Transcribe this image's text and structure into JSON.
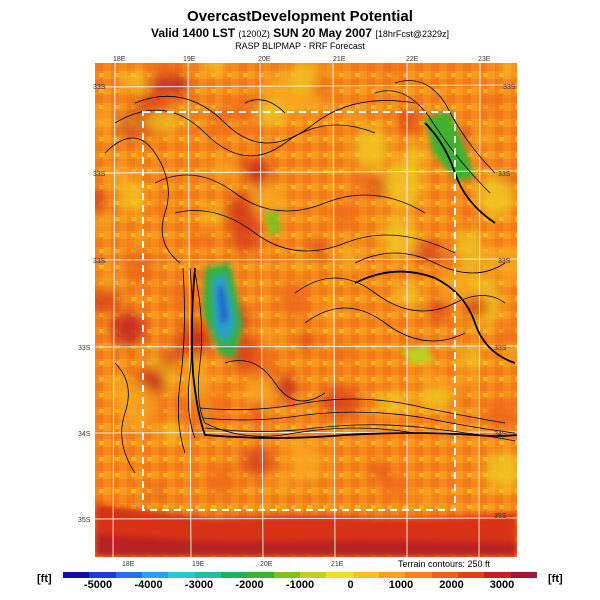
{
  "header": {
    "title": "OvercastDevelopment Potential",
    "valid_prefix": "Valid 1400 LST",
    "valid_utc": "(1200Z)",
    "valid_date": "SUN 20 May 2007",
    "forecast_info": "[18hrFcst@2329z]",
    "subtitle": "RASP BLIPMAP - RRF Forecast"
  },
  "map": {
    "lon_labels_top": [
      "18E",
      "19E",
      "20E",
      "21E",
      "22E",
      "23E"
    ],
    "lon_labels_bottom": [
      "18E",
      "19E",
      "20E",
      "21E"
    ],
    "lat_labels_left": [
      "33S",
      "33S",
      "33S",
      "33S",
      "34S",
      "35S"
    ],
    "lat_labels_right": [
      "33S",
      "33S",
      "33S",
      "33S",
      "34S",
      "35S"
    ],
    "terrain_note": "Terrain contours: 250 ft"
  },
  "legend": {
    "unit_left": "[ft]",
    "unit_right": "[ft]",
    "tick_labels": [
      "-5000",
      "-4000",
      "-3000",
      "-2000",
      "-1000",
      "0",
      "1000",
      "2000",
      "3000"
    ],
    "colors": [
      "#1010a0",
      "#1c3cd8",
      "#2a6cf0",
      "#2aa0f0",
      "#20c8d8",
      "#20c0a0",
      "#20b060",
      "#40b030",
      "#80c020",
      "#c0d020",
      "#f0e020",
      "#f8c020",
      "#f8a020",
      "#f88020",
      "#f06018",
      "#e04018",
      "#c82020",
      "#a01830"
    ]
  },
  "map_fill": {
    "base_color": "#f88a1c",
    "patch_colors": [
      "#f06a18",
      "#f8a820",
      "#f0c820",
      "#d84018",
      "#c02020",
      "#30b040",
      "#70c030",
      "#20a0c0",
      "#2060d0"
    ]
  }
}
